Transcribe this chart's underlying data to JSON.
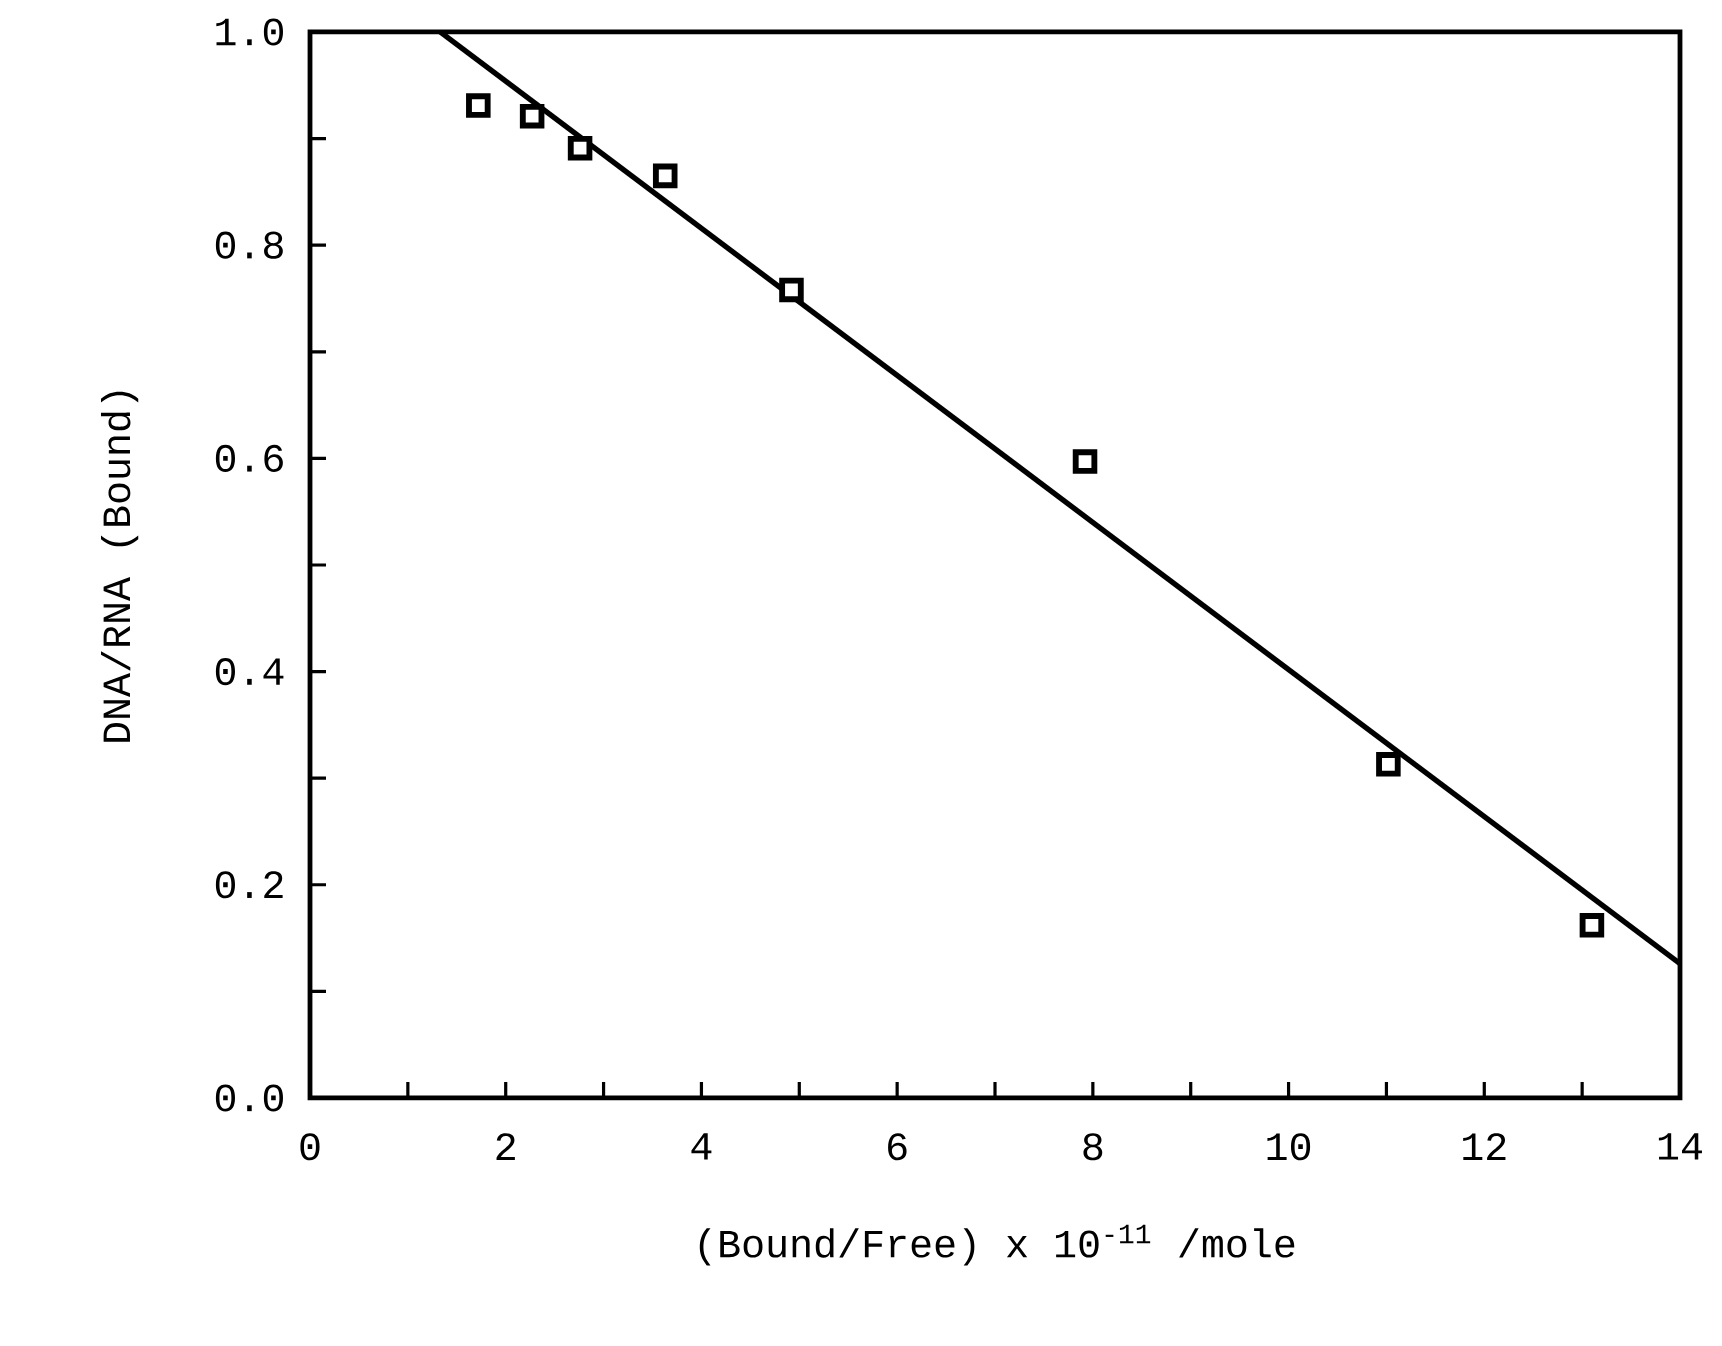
{
  "chart_data": {
    "type": "scatter",
    "xlabel": "(Bound/Free) x 10$^{-11}$ /mole",
    "ylabel": "DNA/RNA (Bound)",
    "xlim": [
      0,
      14
    ],
    "ylim": [
      0,
      1.0
    ],
    "xticks": [
      0,
      {
        "value": 1,
        "label": null
      },
      2,
      {
        "value": 3,
        "label": null
      },
      4,
      {
        "value": 5,
        "label": null
      },
      6,
      {
        "value": 7,
        "label": null
      },
      8,
      {
        "value": 9,
        "label": null
      },
      10,
      {
        "value": 11,
        "label": null
      },
      12,
      {
        "value": 13,
        "label": null
      },
      14
    ],
    "yticks": [
      {
        "value": 0,
        "label": "0.0"
      },
      {
        "value": 0.1,
        "label": null
      },
      {
        "value": 0.2,
        "label": "0.2"
      },
      {
        "value": 0.3,
        "label": null
      },
      {
        "value": 0.4,
        "label": "0.4"
      },
      {
        "value": 0.5,
        "label": null
      },
      {
        "value": 0.6,
        "label": "0.6"
      },
      {
        "value": 0.7,
        "label": null
      },
      {
        "value": 0.8,
        "label": "0.8"
      },
      {
        "value": 0.9,
        "label": null
      },
      {
        "value": 1.0,
        "label": "1.0"
      }
    ],
    "grid": false,
    "series": [
      {
        "marker": "square",
        "color": "#000000",
        "x": [
          1.72,
          2.27,
          2.76,
          3.63,
          4.92,
          7.92,
          11.02,
          13.1
        ],
        "values": [
          0.931,
          0.921,
          0.891,
          0.865,
          0.758,
          0.597,
          0.313,
          0.162
        ]
      },
      {
        "type": "line",
        "marker": "none",
        "line_style": "solid",
        "color": "#000000",
        "x": [
          1.33,
          14
        ],
        "values": [
          1.0,
          0.126
        ]
      }
    ]
  }
}
